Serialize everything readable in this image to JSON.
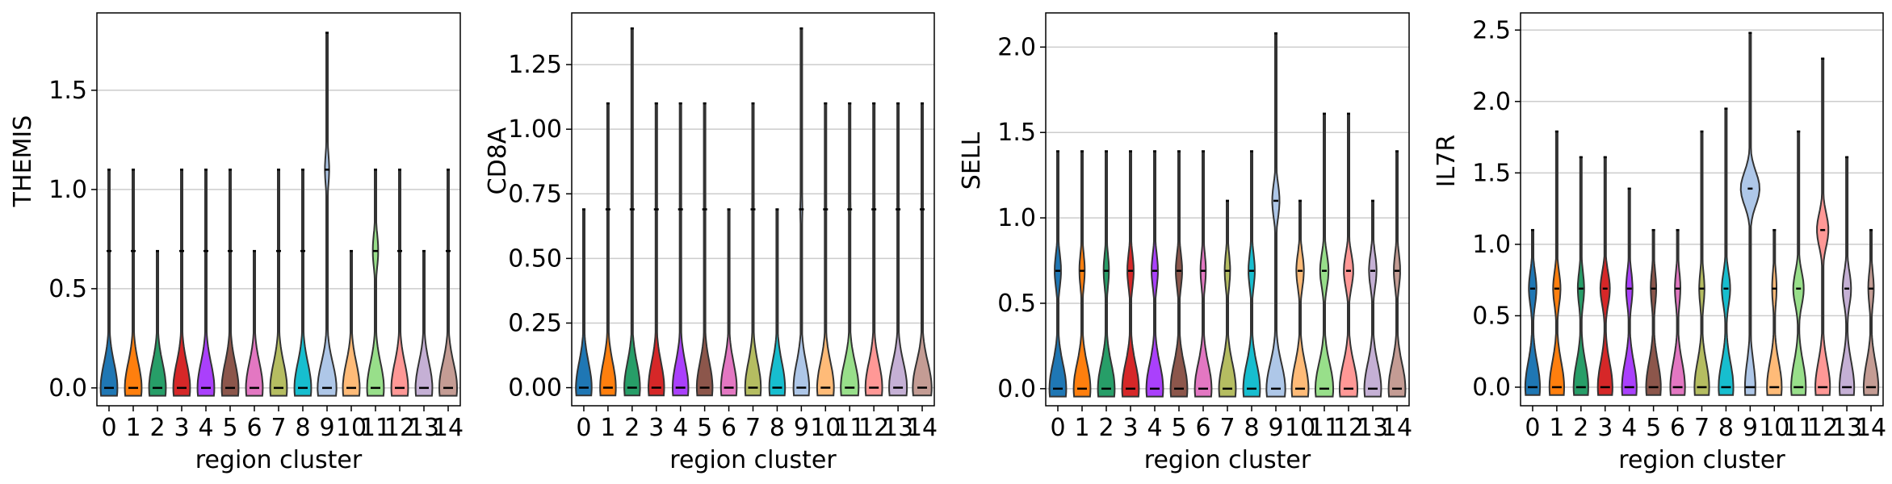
{
  "chart_data": [
    {
      "type": "violin",
      "gene": "THEMIS",
      "ylabel": "THEMIS",
      "xlabel": "region cluster",
      "ylim": [
        -0.09,
        1.89
      ],
      "yticks": [
        "0.0",
        "0.5",
        "1.0",
        "1.5"
      ],
      "ytick_values": [
        0.0,
        0.5,
        1.0,
        1.5
      ],
      "grid": "y",
      "categories": [
        "0",
        "1",
        "2",
        "3",
        "4",
        "5",
        "6",
        "7",
        "8",
        "9",
        "10",
        "11",
        "12",
        "13",
        "14"
      ],
      "max": [
        1.1,
        1.1,
        0.69,
        1.1,
        1.1,
        1.1,
        0.69,
        1.1,
        1.1,
        1.79,
        0.69,
        1.1,
        1.1,
        0.69,
        1.1
      ],
      "level": [
        0.69,
        0.69,
        0.0,
        0.69,
        0.69,
        0.69,
        0.0,
        0.69,
        0.69,
        1.1,
        0.0,
        0.69,
        0.69,
        0.0,
        0.69
      ],
      "base_width": [
        0.8,
        0.8,
        0.8,
        0.8,
        0.8,
        0.8,
        0.8,
        0.8,
        0.8,
        0.9,
        0.8,
        0.8,
        0.8,
        0.8,
        0.85
      ],
      "top_width": [
        0.06,
        0.06,
        0.0,
        0.06,
        0.06,
        0.06,
        0.0,
        0.06,
        0.06,
        0.2,
        0.0,
        0.25,
        0.06,
        0.0,
        0.06
      ]
    },
    {
      "type": "violin",
      "gene": "CD8A",
      "ylabel": "CD8A",
      "xlabel": "region cluster",
      "ylim": [
        -0.07,
        1.45
      ],
      "yticks": [
        "0.00",
        "0.25",
        "0.50",
        "0.75",
        "1.00",
        "1.25"
      ],
      "ytick_values": [
        0.0,
        0.25,
        0.5,
        0.75,
        1.0,
        1.25
      ],
      "grid": "y",
      "categories": [
        "0",
        "1",
        "2",
        "3",
        "4",
        "5",
        "6",
        "7",
        "8",
        "9",
        "10",
        "11",
        "12",
        "13",
        "14"
      ],
      "max": [
        0.69,
        1.1,
        1.39,
        1.1,
        1.1,
        1.1,
        0.69,
        1.1,
        0.69,
        1.39,
        1.1,
        1.1,
        1.1,
        1.1,
        1.1
      ],
      "level": [
        0.0,
        0.69,
        0.69,
        0.69,
        0.69,
        0.69,
        0.0,
        0.69,
        0.0,
        0.69,
        0.69,
        0.69,
        0.69,
        0.69,
        0.69
      ],
      "base_width": [
        0.75,
        0.75,
        0.75,
        0.75,
        0.75,
        0.75,
        0.75,
        0.75,
        0.75,
        0.75,
        0.8,
        0.85,
        0.8,
        0.85,
        0.9
      ],
      "top_width": [
        0.0,
        0.06,
        0.06,
        0.06,
        0.06,
        0.06,
        0.0,
        0.06,
        0.0,
        0.1,
        0.06,
        0.08,
        0.06,
        0.06,
        0.06
      ]
    },
    {
      "type": "violin",
      "gene": "SELL",
      "ylabel": "SELL",
      "xlabel": "region cluster",
      "ylim": [
        -0.1,
        2.2
      ],
      "yticks": [
        "0.0",
        "0.5",
        "1.0",
        "1.5",
        "2.0"
      ],
      "ytick_values": [
        0.0,
        0.5,
        1.0,
        1.5,
        2.0
      ],
      "grid": "y",
      "categories": [
        "0",
        "1",
        "2",
        "3",
        "4",
        "5",
        "6",
        "7",
        "8",
        "9",
        "10",
        "11",
        "12",
        "13",
        "14"
      ],
      "max": [
        1.39,
        1.39,
        1.39,
        1.39,
        1.39,
        1.39,
        1.39,
        1.1,
        1.39,
        2.08,
        1.1,
        1.61,
        1.61,
        1.1,
        1.39
      ],
      "level": [
        0.69,
        0.69,
        0.69,
        0.69,
        0.69,
        0.69,
        0.69,
        0.69,
        0.69,
        1.1,
        0.69,
        0.69,
        0.69,
        0.69,
        0.69
      ],
      "base_width": [
        0.8,
        0.8,
        0.8,
        0.8,
        0.8,
        0.8,
        0.8,
        0.8,
        0.8,
        0.9,
        0.8,
        0.85,
        0.85,
        0.8,
        0.8
      ],
      "top_width": [
        0.3,
        0.25,
        0.25,
        0.3,
        0.3,
        0.3,
        0.25,
        0.25,
        0.3,
        0.35,
        0.35,
        0.4,
        0.45,
        0.35,
        0.3
      ]
    },
    {
      "type": "violin",
      "gene": "IL7R",
      "ylabel": "IL7R",
      "xlabel": "region cluster",
      "ylim": [
        -0.13,
        2.62
      ],
      "yticks": [
        "0.0",
        "0.5",
        "1.0",
        "1.5",
        "2.0",
        "2.5"
      ],
      "ytick_values": [
        0.0,
        0.5,
        1.0,
        1.5,
        2.0,
        2.5
      ],
      "grid": "y",
      "categories": [
        "0",
        "1",
        "2",
        "3",
        "4",
        "5",
        "6",
        "7",
        "8",
        "9",
        "10",
        "11",
        "12",
        "13",
        "14"
      ],
      "max": [
        1.1,
        1.79,
        1.61,
        1.61,
        1.39,
        1.1,
        1.1,
        1.79,
        1.95,
        2.48,
        1.1,
        1.79,
        2.3,
        1.61,
        1.1
      ],
      "level": [
        0.69,
        0.69,
        0.69,
        0.69,
        0.69,
        0.69,
        0.69,
        0.69,
        0.69,
        1.39,
        0.69,
        0.69,
        1.1,
        0.69,
        0.69
      ],
      "base_width": [
        0.7,
        0.7,
        0.7,
        0.7,
        0.7,
        0.7,
        0.7,
        0.7,
        0.7,
        0.5,
        0.7,
        0.7,
        0.7,
        0.7,
        0.7
      ],
      "top_width": [
        0.35,
        0.35,
        0.3,
        0.45,
        0.3,
        0.25,
        0.25,
        0.25,
        0.4,
        0.9,
        0.2,
        0.5,
        0.55,
        0.4,
        0.25
      ]
    }
  ],
  "colors": [
    "#1f77b4",
    "#ff7f0e",
    "#279e68",
    "#d62728",
    "#aa40fc",
    "#8c564b",
    "#e377c2",
    "#b5bd61",
    "#17becf",
    "#aec7e8",
    "#ffbb78",
    "#98df8a",
    "#ff9896",
    "#c5b0d5",
    "#c49c94"
  ],
  "style": {
    "grid_color": "#cccccc",
    "outline_color": "#333333"
  }
}
